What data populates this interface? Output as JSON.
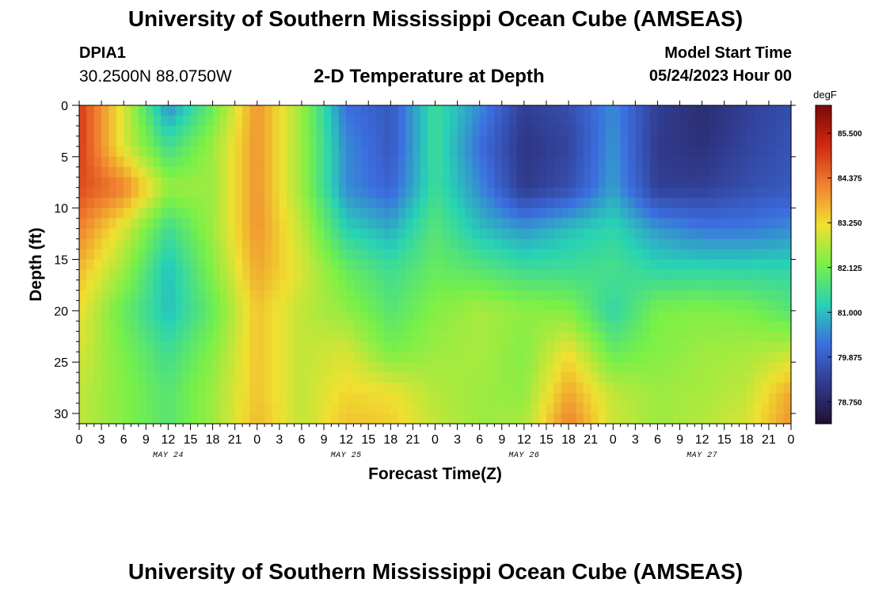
{
  "header": {
    "title": "University of Southern Mississippi Ocean Cube (AMSEAS)",
    "station": "DPIA1",
    "coords": "30.2500N  88.0750W",
    "subtitle": "2-D Temperature at Depth",
    "model_start_label": "Model Start Time",
    "model_start_value": "05/24/2023 Hour 00"
  },
  "footer": {
    "title": "University of Southern Mississippi Ocean Cube (AMSEAS)"
  },
  "chart_data": {
    "type": "heatmap",
    "title": "2-D Temperature at Depth",
    "xlabel": "Forecast Time(Z)",
    "ylabel": "Depth (ft)",
    "x_tick_labels": [
      "0",
      "3",
      "6",
      "9",
      "12",
      "15",
      "18",
      "21",
      "0",
      "3",
      "6",
      "9",
      "12",
      "15",
      "18",
      "21",
      "0",
      "3",
      "6",
      "9",
      "12",
      "15",
      "18",
      "21",
      "0",
      "3",
      "6",
      "9",
      "12",
      "15",
      "18",
      "21",
      "0"
    ],
    "x_range_hours": [
      0,
      96
    ],
    "day_labels": [
      {
        "label": "MAY 24",
        "hour": 12
      },
      {
        "label": "MAY 25",
        "hour": 36
      },
      {
        "label": "MAY 26",
        "hour": 60
      },
      {
        "label": "MAY 27",
        "hour": 84
      }
    ],
    "y_ticks": [
      0,
      5,
      10,
      15,
      20,
      25,
      30
    ],
    "y_tick_labels": [
      "0",
      "5",
      "10",
      "15",
      "20",
      "25",
      "30"
    ],
    "ylim": [
      0,
      31
    ],
    "colorbar": {
      "units": "degF",
      "range": [
        78.2,
        86.2
      ],
      "ticks": [
        78.75,
        79.875,
        81.0,
        82.125,
        83.25,
        84.375,
        85.5
      ],
      "tick_labels": [
        "78.750",
        "79.875",
        "81.000",
        "82.125",
        "83.250",
        "84.375",
        "85.500"
      ],
      "colors": [
        "#201030",
        "#303a8c",
        "#3c6ee0",
        "#28d2b4",
        "#78f048",
        "#f0e030",
        "#f08030",
        "#d02810",
        "#780a0a"
      ]
    },
    "grid": {
      "times": [
        0,
        6,
        12,
        18,
        24,
        30,
        36,
        42,
        48,
        54,
        60,
        66,
        72,
        78,
        84,
        90,
        96
      ],
      "depths": [
        0,
        4,
        8,
        12,
        16,
        20,
        24,
        28,
        31
      ],
      "values": [
        [
          85.0,
          83.0,
          80.5,
          82.0,
          84.0,
          82.5,
          80.2,
          79.8,
          81.5,
          80.5,
          79.3,
          79.6,
          80.5,
          79.3,
          78.9,
          79.3,
          79.6
        ],
        [
          85.0,
          83.0,
          81.5,
          82.5,
          84.0,
          82.5,
          80.5,
          79.8,
          81.5,
          80.2,
          79.1,
          79.4,
          80.6,
          79.2,
          79.0,
          79.4,
          79.7
        ],
        [
          84.8,
          84.2,
          82.5,
          82.5,
          84.0,
          82.5,
          80.5,
          80.0,
          81.5,
          80.5,
          79.2,
          79.6,
          80.7,
          79.3,
          79.3,
          79.6,
          79.8
        ],
        [
          84.2,
          83.0,
          81.5,
          82.5,
          84.0,
          82.8,
          81.2,
          80.8,
          81.8,
          81.0,
          80.6,
          81.0,
          81.3,
          80.6,
          80.3,
          80.3,
          80.5
        ],
        [
          83.6,
          82.5,
          81.0,
          82.3,
          83.8,
          83.0,
          82.0,
          81.5,
          82.0,
          81.8,
          81.5,
          81.5,
          81.6,
          81.3,
          81.3,
          81.3,
          81.3
        ],
        [
          83.2,
          82.0,
          81.0,
          82.0,
          83.5,
          82.8,
          82.4,
          81.8,
          82.3,
          82.6,
          82.4,
          82.3,
          81.3,
          82.2,
          82.3,
          82.2,
          81.8
        ],
        [
          83.0,
          82.2,
          81.5,
          82.3,
          83.5,
          82.8,
          83.0,
          82.2,
          82.5,
          82.6,
          82.3,
          83.2,
          82.0,
          82.3,
          82.5,
          82.6,
          82.8
        ],
        [
          82.8,
          82.3,
          81.8,
          82.5,
          83.5,
          82.8,
          83.3,
          83.2,
          82.7,
          82.5,
          82.4,
          83.8,
          82.8,
          82.5,
          82.6,
          82.8,
          83.8
        ],
        [
          82.8,
          82.3,
          81.8,
          82.5,
          83.6,
          82.8,
          83.5,
          83.4,
          82.8,
          82.5,
          82.6,
          84.2,
          82.9,
          82.5,
          82.7,
          83.0,
          84.0
        ]
      ]
    }
  }
}
